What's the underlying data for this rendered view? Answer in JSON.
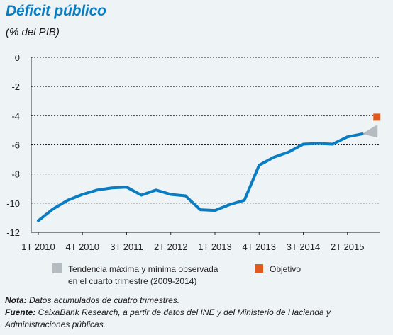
{
  "chart_data": {
    "type": "line",
    "title": "Déficit público",
    "subtitle": "(% del PIB)",
    "ylim": [
      -12,
      0
    ],
    "yticks": [
      "0",
      "-2",
      "-4",
      "-6",
      "-8",
      "-10",
      "-12"
    ],
    "ytick_values": [
      0,
      -2,
      -4,
      -6,
      -8,
      -10,
      -12
    ],
    "x_tick_labels": [
      "1T 2010",
      "4T 2010",
      "3T 2011",
      "2T 2012",
      "1T 2013",
      "4T 2013",
      "3T 2014",
      "2T 2015"
    ],
    "x_tick_index": [
      0,
      3,
      6,
      9,
      12,
      15,
      18,
      21
    ],
    "grid": "horizontal",
    "series": [
      {
        "color": "#0a7cc1",
        "x": [
          "1T 2010",
          "2T 2010",
          "3T 2010",
          "4T 2010",
          "1T 2011",
          "2T 2011",
          "3T 2011",
          "4T 2011",
          "1T 2012",
          "2T 2012",
          "3T 2012",
          "4T 2012",
          "1T 2013",
          "2T 2013",
          "3T 2013",
          "4T 2013",
          "1T 2014",
          "2T 2014",
          "3T 2014",
          "4T 2014",
          "1T 2015",
          "2T 2015",
          "3T 2015"
        ],
        "values": [
          -11.2,
          -10.4,
          -9.8,
          -9.4,
          -9.1,
          -8.95,
          -8.9,
          -9.45,
          -9.1,
          -9.4,
          -9.5,
          -10.45,
          -10.5,
          -10.1,
          -9.8,
          -7.4,
          -6.85,
          -6.5,
          -5.95,
          -5.9,
          -5.95,
          -5.45,
          -5.25
        ]
      }
    ],
    "range_marker": {
      "label": "Tendencia máxima y mínima observada en el cuarto trimestre (2009-2014)",
      "x_index": 23,
      "from": -5.25,
      "high": -4.6,
      "low": -5.5,
      "color": "#b4bcc1"
    },
    "target": {
      "label": "Objetivo",
      "x_index": 23,
      "value": -4.1,
      "color": "#e05a1e"
    },
    "legend": {
      "placement": "bottom",
      "items": [
        {
          "line1": "Tendencia máxima y mínima observada",
          "line2": "en el cuarto trimestre (2009-2014)",
          "color": "#b4bcc1"
        },
        {
          "line1": "Objetivo",
          "line2": "",
          "color": "#e05a1e"
        }
      ]
    }
  },
  "notes": {
    "nota_label": "Nota:",
    "nota_text": " Datos acumulados de cuatro trimestres.",
    "fuente_label": "Fuente:",
    "fuente_text": " CaixaBank Research, a partir de datos del INE y del Ministerio de Hacienda y Administraciones públicas."
  }
}
